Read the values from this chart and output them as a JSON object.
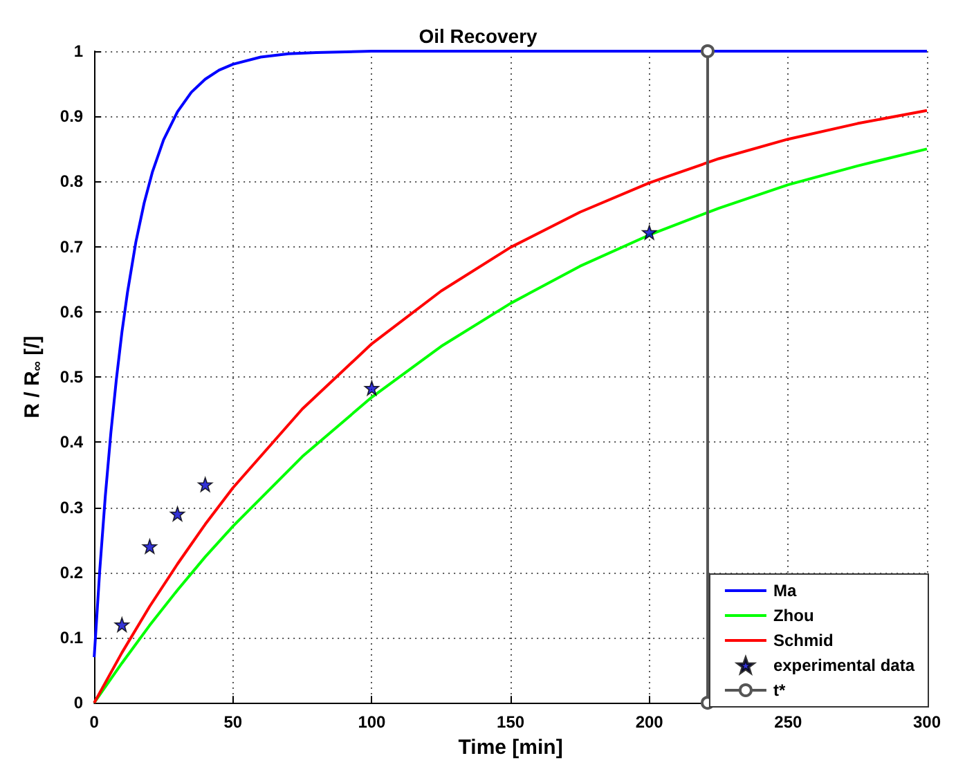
{
  "chart_data": {
    "type": "line",
    "title": "Oil Recovery",
    "xlabel": "Time [min]",
    "ylabel": "R / R$_{∞}$ [/]",
    "xlim": [
      0,
      300
    ],
    "xticks": [
      0,
      50,
      100,
      150,
      200,
      250,
      300
    ],
    "ylim": [
      0,
      1
    ],
    "yticks": [
      0,
      0.1,
      0.2,
      0.3,
      0.4,
      0.5,
      0.6,
      0.7,
      0.8,
      0.9,
      1
    ],
    "grid": true,
    "legend": "bottom right",
    "series": [
      {
        "name": "Ma",
        "color": "#0000ff",
        "x": [
          0,
          2,
          4,
          6,
          8,
          10,
          12,
          15,
          18,
          21,
          25,
          30,
          35,
          40,
          45,
          50,
          60,
          70,
          80,
          100,
          150,
          200,
          250,
          300
        ],
        "values": [
          0.07,
          0.203,
          0.317,
          0.414,
          0.497,
          0.569,
          0.63,
          0.707,
          0.767,
          0.815,
          0.864,
          0.907,
          0.937,
          0.957,
          0.971,
          0.98,
          0.991,
          0.996,
          0.998,
          1,
          1,
          1,
          1,
          1
        ]
      },
      {
        "name": "Zhou",
        "color": "#00ff00",
        "x": [
          0,
          10,
          20,
          30,
          40,
          50,
          75,
          100,
          125,
          150,
          175,
          200,
          225,
          250,
          275,
          300
        ],
        "values": [
          0,
          0.061,
          0.119,
          0.173,
          0.224,
          0.271,
          0.378,
          0.469,
          0.547,
          0.613,
          0.67,
          0.718,
          0.759,
          0.795,
          0.824,
          0.85
        ]
      },
      {
        "name": "Schmid",
        "color": "#ff0000",
        "x": [
          0,
          10,
          20,
          30,
          40,
          50,
          75,
          100,
          125,
          150,
          175,
          200,
          225,
          250,
          275,
          300
        ],
        "values": [
          0,
          0.077,
          0.148,
          0.213,
          0.274,
          0.33,
          0.451,
          0.551,
          0.632,
          0.699,
          0.753,
          0.798,
          0.835,
          0.865,
          0.889,
          0.909
        ]
      },
      {
        "name": "experimental data",
        "type": "scatter",
        "marker": "star",
        "color": "#0000cc",
        "x": [
          10,
          20,
          30,
          40,
          100,
          200
        ],
        "values": [
          0.12,
          0.24,
          0.29,
          0.335,
          0.483,
          0.722
        ]
      },
      {
        "name": "t*",
        "marker": "circle",
        "color": "#555555",
        "x": [
          221,
          221
        ],
        "values": [
          0,
          1
        ]
      }
    ]
  }
}
